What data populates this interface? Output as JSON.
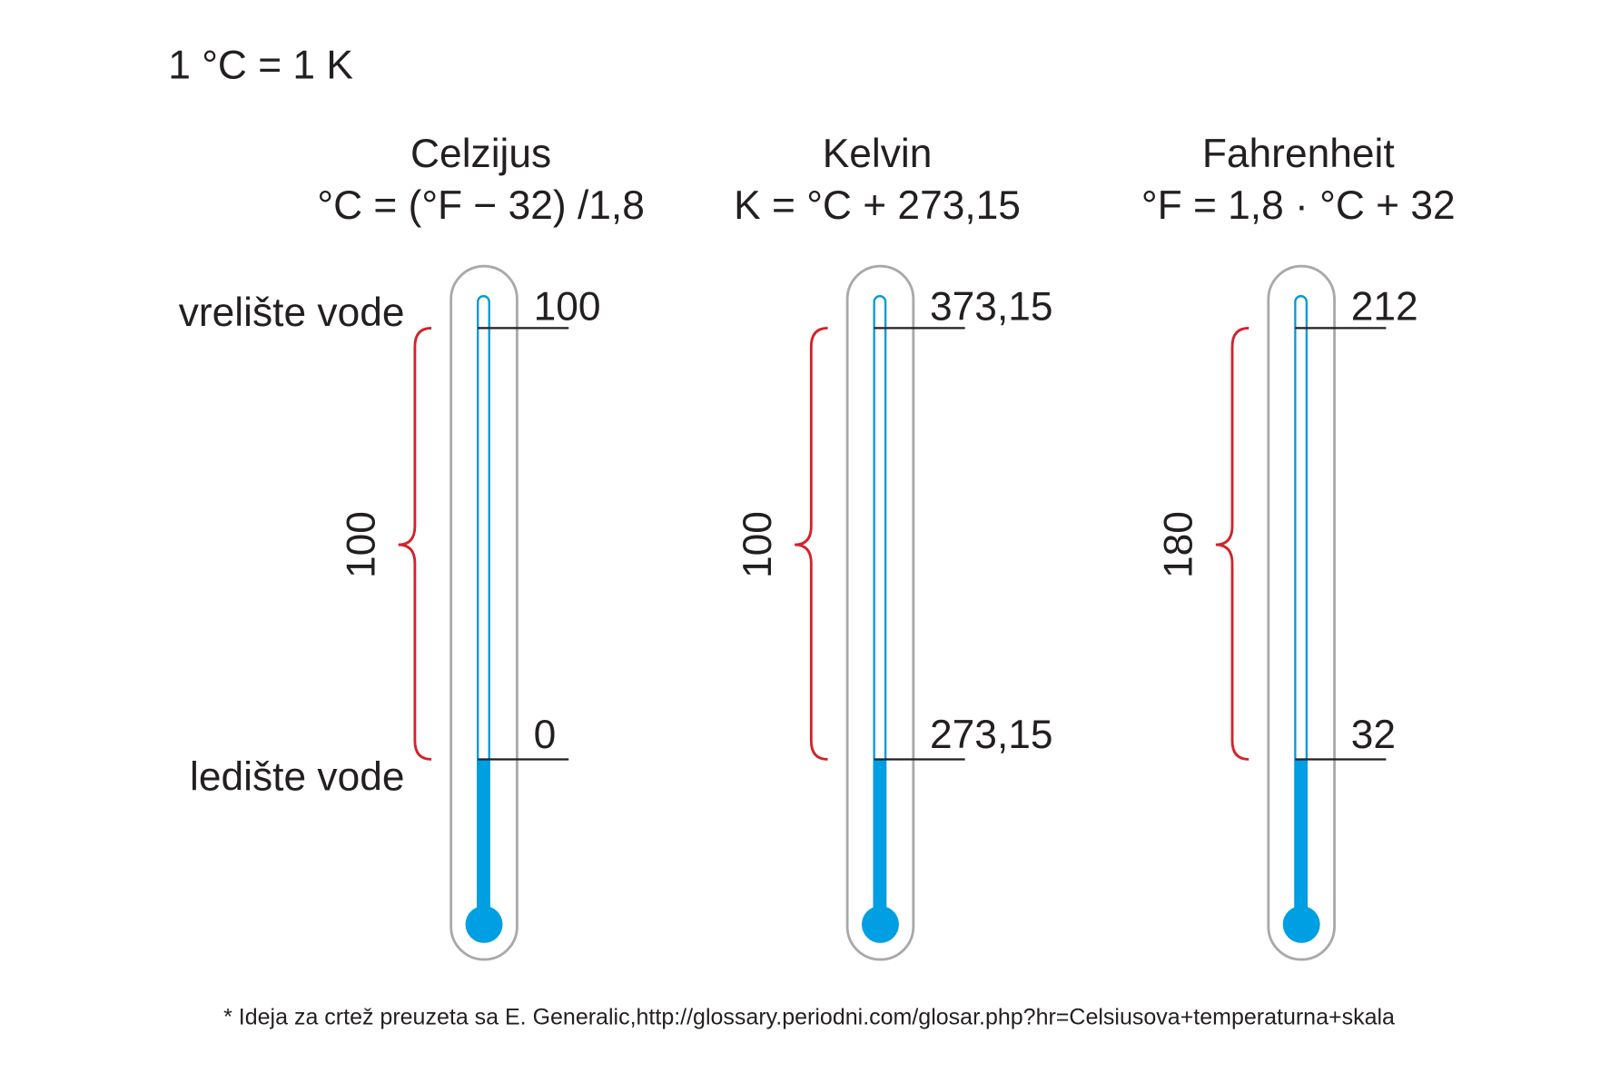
{
  "header": "1 °C = 1 K",
  "side_labels": {
    "boiling": "vrelište vode",
    "freezing": "ledište vode"
  },
  "thermometers": [
    {
      "name": "Celzijus",
      "formula": "°C = (°F − 32) /1,8",
      "top": "100",
      "bottom": "0",
      "span": "100"
    },
    {
      "name": "Kelvin",
      "formula": "K = °C + 273,15",
      "top": "373,15",
      "bottom": "273,15",
      "span": "100"
    },
    {
      "name": "Fahrenheit",
      "formula": "°F = 1,8 · °C + 32",
      "top": "212",
      "bottom": "32",
      "span": "180"
    }
  ],
  "footnote": "* Ideja za crtež preuzeta sa E. Generalic,http://glossary.periodni.com/glosar.php?hr=Celsiusova+temperaturna+skala"
}
